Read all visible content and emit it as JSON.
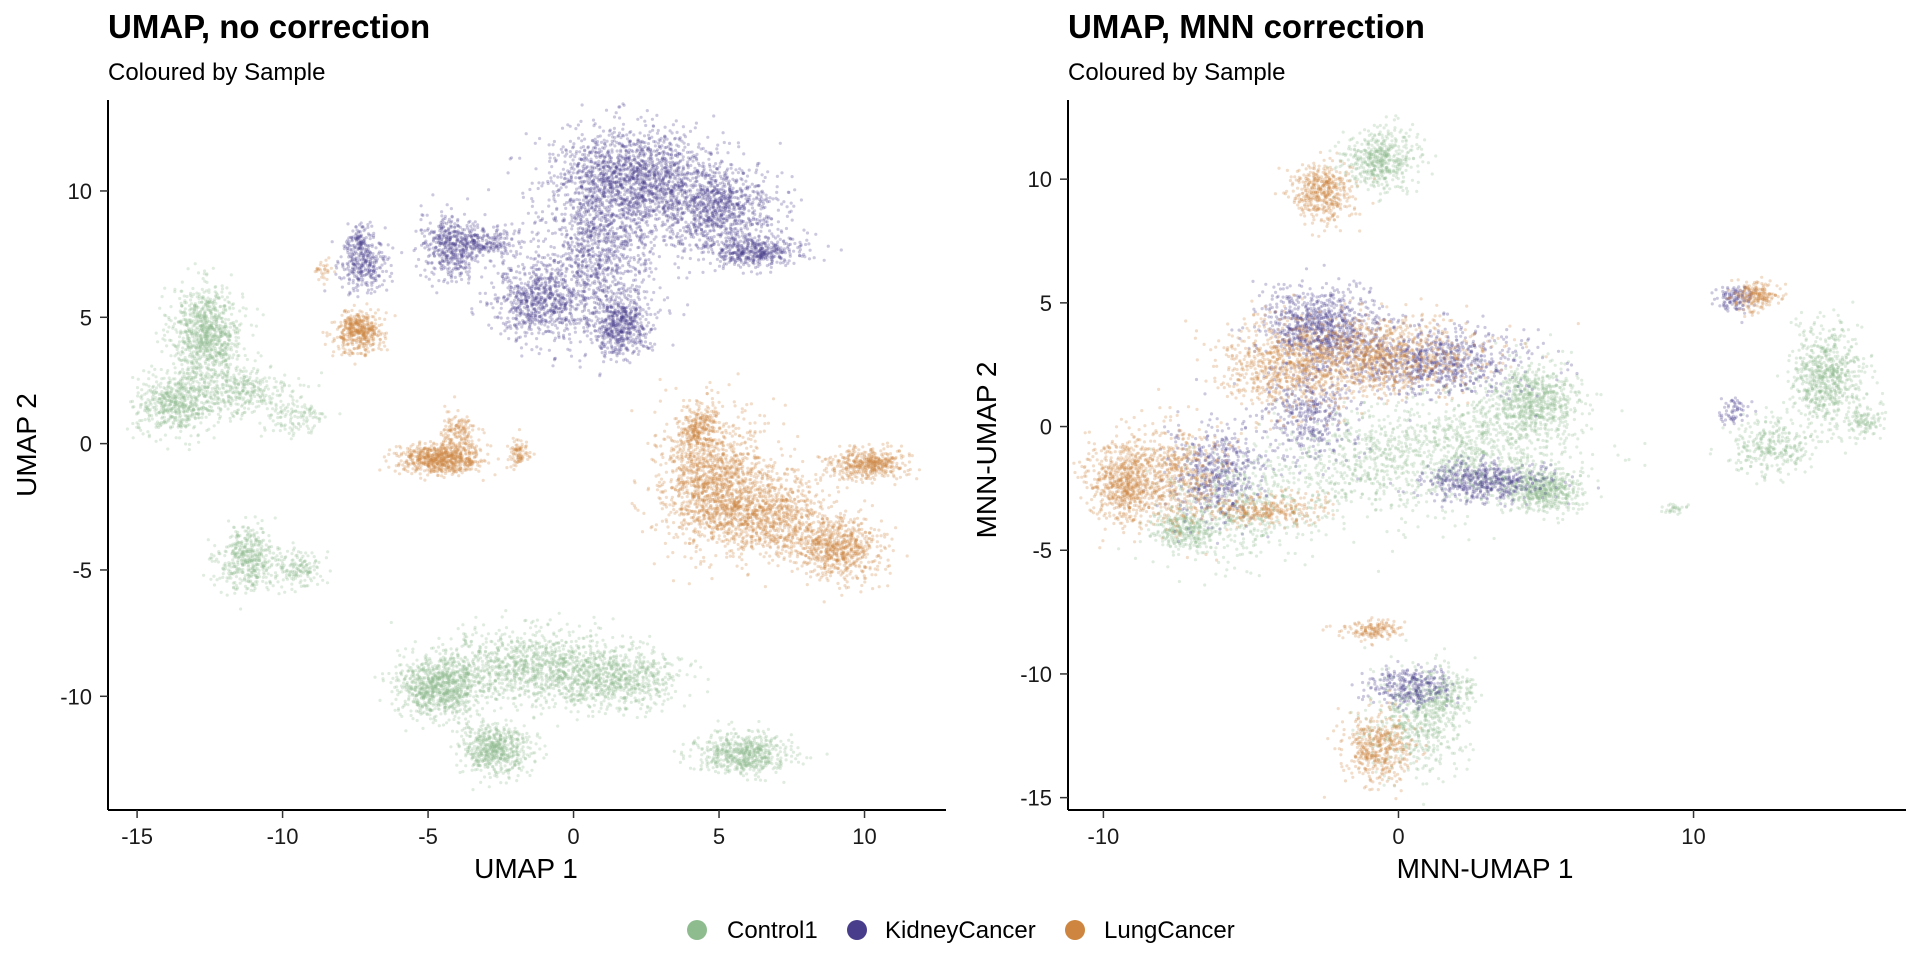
{
  "colors": {
    "Control1": "#8fbc8f",
    "KidneyCancer": "#483d8b",
    "LungCancer": "#cd853f"
  },
  "legend": {
    "placement": "bottom",
    "entries": [
      "Control1",
      "KidneyCancer",
      "LungCancer"
    ]
  },
  "chart_data": [
    {
      "type": "scatter",
      "title": "UMAP, no correction",
      "subtitle": "Coloured by Sample",
      "xlabel": "UMAP 1",
      "ylabel": "UMAP 2",
      "xlim": [
        -16.0,
        12.8
      ],
      "ylim": [
        -14.5,
        13.6
      ],
      "xticks": [
        -15,
        -10,
        -5,
        0,
        5,
        10
      ],
      "yticks": [
        -10,
        -5,
        0,
        5,
        10
      ],
      "xtick_labels": [
        "-15",
        "-10",
        "-5",
        "0",
        "5",
        "10"
      ],
      "ytick_labels": [
        "-10",
        "-5",
        "0",
        "5",
        "10"
      ],
      "grid": false,
      "series": [
        {
          "name": "Control1",
          "clusters": [
            {
              "x": -12.6,
              "y": 4.4,
              "sx": 0.6,
              "sy": 0.9,
              "n": 900
            },
            {
              "x": -13.6,
              "y": 1.6,
              "sx": 0.7,
              "sy": 0.6,
              "n": 600
            },
            {
              "x": -11.5,
              "y": 2.1,
              "sx": 0.9,
              "sy": 0.5,
              "n": 350
            },
            {
              "x": -9.6,
              "y": 1.0,
              "sx": 0.6,
              "sy": 0.4,
              "n": 120
            },
            {
              "x": -11.2,
              "y": -4.6,
              "sx": 0.5,
              "sy": 0.6,
              "n": 450
            },
            {
              "x": -9.4,
              "y": -4.9,
              "sx": 0.4,
              "sy": 0.4,
              "n": 150
            },
            {
              "x": -4.6,
              "y": -9.6,
              "sx": 0.7,
              "sy": 0.6,
              "n": 900
            },
            {
              "x": -1.2,
              "y": -8.8,
              "sx": 1.7,
              "sy": 0.7,
              "n": 1100
            },
            {
              "x": 1.5,
              "y": -9.4,
              "sx": 1.1,
              "sy": 0.6,
              "n": 600
            },
            {
              "x": -2.7,
              "y": -12.1,
              "sx": 0.6,
              "sy": 0.5,
              "n": 600
            },
            {
              "x": 5.8,
              "y": -12.3,
              "sx": 0.8,
              "sy": 0.4,
              "n": 600
            }
          ]
        },
        {
          "name": "KidneyCancer",
          "clusters": [
            {
              "x": 2.0,
              "y": 10.4,
              "sx": 1.4,
              "sy": 1.0,
              "n": 1800
            },
            {
              "x": 5.0,
              "y": 9.2,
              "sx": 1.0,
              "sy": 0.9,
              "n": 900
            },
            {
              "x": 6.2,
              "y": 7.6,
              "sx": 0.8,
              "sy": 0.3,
              "n": 400
            },
            {
              "x": 0.9,
              "y": 7.2,
              "sx": 1.0,
              "sy": 1.4,
              "n": 900
            },
            {
              "x": -1.2,
              "y": 5.6,
              "sx": 0.8,
              "sy": 0.8,
              "n": 700
            },
            {
              "x": 1.6,
              "y": 4.6,
              "sx": 0.5,
              "sy": 0.6,
              "n": 500
            },
            {
              "x": -4.2,
              "y": 7.8,
              "sx": 0.5,
              "sy": 0.6,
              "n": 450
            },
            {
              "x": -3.0,
              "y": 8.0,
              "sx": 0.6,
              "sy": 0.3,
              "n": 200
            },
            {
              "x": -7.2,
              "y": 7.1,
              "sx": 0.4,
              "sy": 0.5,
              "n": 300
            },
            {
              "x": -7.4,
              "y": 8.1,
              "sx": 0.2,
              "sy": 0.3,
              "n": 80
            }
          ]
        },
        {
          "name": "LungCancer",
          "clusters": [
            {
              "x": -7.4,
              "y": 4.4,
              "sx": 0.4,
              "sy": 0.4,
              "n": 450
            },
            {
              "x": -8.6,
              "y": 6.8,
              "sx": 0.15,
              "sy": 0.3,
              "n": 30
            },
            {
              "x": -4.6,
              "y": -0.6,
              "sx": 0.7,
              "sy": 0.3,
              "n": 700
            },
            {
              "x": -4.0,
              "y": 0.4,
              "sx": 0.3,
              "sy": 0.4,
              "n": 150
            },
            {
              "x": -1.9,
              "y": -0.4,
              "sx": 0.2,
              "sy": 0.3,
              "n": 90
            },
            {
              "x": 4.7,
              "y": -1.4,
              "sx": 0.9,
              "sy": 1.3,
              "n": 1300
            },
            {
              "x": 6.6,
              "y": -2.8,
              "sx": 1.1,
              "sy": 0.8,
              "n": 1000
            },
            {
              "x": 9.0,
              "y": -4.2,
              "sx": 0.8,
              "sy": 0.6,
              "n": 700
            },
            {
              "x": 10.1,
              "y": -0.8,
              "sx": 0.7,
              "sy": 0.3,
              "n": 450
            },
            {
              "x": 4.3,
              "y": 0.6,
              "sx": 0.3,
              "sy": 0.5,
              "n": 200
            }
          ]
        }
      ]
    },
    {
      "type": "scatter",
      "title": "UMAP, MNN correction",
      "subtitle": "Coloured by Sample",
      "xlabel": "MNN-UMAP 1",
      "ylabel": "MNN-UMAP 2",
      "xlim": [
        -11.2,
        17.2
      ],
      "ylim": [
        -15.5,
        13.2
      ],
      "xticks": [
        -10,
        0,
        10
      ],
      "yticks": [
        -15,
        -10,
        -5,
        0,
        5,
        10
      ],
      "xtick_labels": [
        "-10",
        "0",
        "10"
      ],
      "ytick_labels": [
        "-15",
        "-10",
        "-5",
        "0",
        "5",
        "10"
      ],
      "grid": false,
      "series": [
        {
          "name": "Control1",
          "clusters": [
            {
              "x": -0.6,
              "y": 10.8,
              "sx": 0.6,
              "sy": 0.6,
              "n": 500
            },
            {
              "x": 4.6,
              "y": 1.0,
              "sx": 0.8,
              "sy": 0.8,
              "n": 700
            },
            {
              "x": 2.5,
              "y": -1.0,
              "sx": 1.6,
              "sy": 1.1,
              "n": 800
            },
            {
              "x": 5.0,
              "y": -2.6,
              "sx": 0.6,
              "sy": 0.4,
              "n": 500
            },
            {
              "x": -1.2,
              "y": -1.5,
              "sx": 1.5,
              "sy": 1.1,
              "n": 500
            },
            {
              "x": -5.5,
              "y": -3.2,
              "sx": 1.3,
              "sy": 1.1,
              "n": 500
            },
            {
              "x": -7.2,
              "y": -4.2,
              "sx": 0.6,
              "sy": 0.4,
              "n": 300
            },
            {
              "x": 14.5,
              "y": 2.0,
              "sx": 0.6,
              "sy": 1.0,
              "n": 700
            },
            {
              "x": 12.7,
              "y": -0.8,
              "sx": 0.7,
              "sy": 0.6,
              "n": 300
            },
            {
              "x": 15.8,
              "y": 0.2,
              "sx": 0.3,
              "sy": 0.3,
              "n": 100
            },
            {
              "x": 0.6,
              "y": -12.0,
              "sx": 0.8,
              "sy": 1.0,
              "n": 500
            },
            {
              "x": 1.6,
              "y": -10.8,
              "sx": 0.5,
              "sy": 0.5,
              "n": 200
            },
            {
              "x": 9.3,
              "y": -3.3,
              "sx": 0.3,
              "sy": 0.1,
              "n": 30
            }
          ]
        },
        {
          "name": "KidneyCancer",
          "clusters": [
            {
              "x": -2.6,
              "y": 4.0,
              "sx": 1.0,
              "sy": 0.8,
              "n": 900
            },
            {
              "x": 1.2,
              "y": 2.6,
              "sx": 1.5,
              "sy": 0.7,
              "n": 800
            },
            {
              "x": 2.9,
              "y": -2.2,
              "sx": 1.1,
              "sy": 0.4,
              "n": 500
            },
            {
              "x": -6.2,
              "y": -1.8,
              "sx": 0.8,
              "sy": 1.0,
              "n": 500
            },
            {
              "x": -3.0,
              "y": 0.6,
              "sx": 0.8,
              "sy": 1.0,
              "n": 400
            },
            {
              "x": 0.4,
              "y": -10.5,
              "sx": 0.7,
              "sy": 0.4,
              "n": 300
            },
            {
              "x": 11.4,
              "y": 5.2,
              "sx": 0.3,
              "sy": 0.3,
              "n": 120
            },
            {
              "x": 11.4,
              "y": 0.6,
              "sx": 0.3,
              "sy": 0.3,
              "n": 60
            }
          ]
        },
        {
          "name": "LungCancer",
          "clusters": [
            {
              "x": -2.6,
              "y": 9.5,
              "sx": 0.5,
              "sy": 0.6,
              "n": 450
            },
            {
              "x": -0.8,
              "y": 2.8,
              "sx": 1.8,
              "sy": 0.8,
              "n": 1100
            },
            {
              "x": -4.0,
              "y": 2.4,
              "sx": 1.1,
              "sy": 0.9,
              "n": 600
            },
            {
              "x": -9.3,
              "y": -2.2,
              "sx": 0.6,
              "sy": 0.8,
              "n": 700
            },
            {
              "x": -7.6,
              "y": -2.0,
              "sx": 0.8,
              "sy": 1.0,
              "n": 500
            },
            {
              "x": -4.5,
              "y": -3.4,
              "sx": 1.0,
              "sy": 0.3,
              "n": 300
            },
            {
              "x": 12.1,
              "y": 5.3,
              "sx": 0.4,
              "sy": 0.3,
              "n": 200
            },
            {
              "x": -0.7,
              "y": -13.0,
              "sx": 0.6,
              "sy": 0.7,
              "n": 450
            },
            {
              "x": -0.8,
              "y": -8.2,
              "sx": 0.5,
              "sy": 0.2,
              "n": 150
            }
          ]
        }
      ]
    }
  ]
}
